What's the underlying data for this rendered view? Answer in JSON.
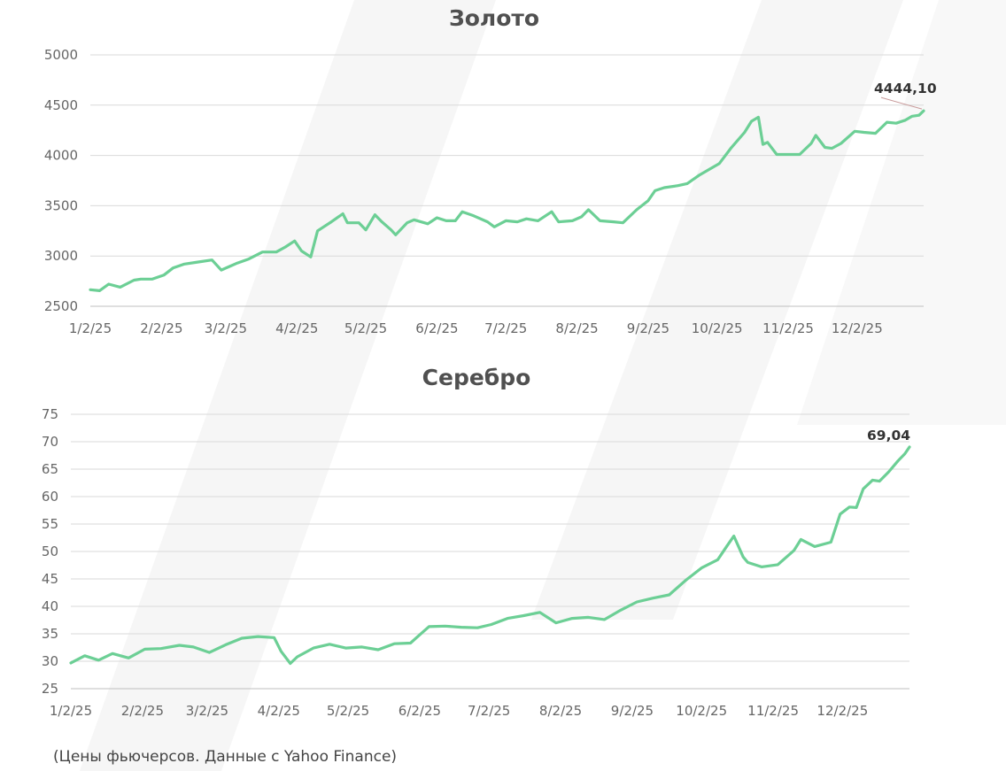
{
  "colors": {
    "line": "#6ccf95",
    "grid": "#d9d9d9",
    "text": "#555555",
    "watermark": "#f6f6f6"
  },
  "footnote": "(Цены фьючерсов. Данные с Yahoo Finance)",
  "chart_data": [
    {
      "type": "line",
      "title": "Золото",
      "xlabel": "",
      "ylabel": "",
      "x_start": "1/2/25",
      "x_end": "12/31/25",
      "x_ticks": [
        "1/2/25",
        "2/2/25",
        "3/2/25",
        "4/2/25",
        "5/2/25",
        "6/2/25",
        "7/2/25",
        "8/2/25",
        "9/2/25",
        "10/2/25",
        "11/2/25",
        "12/2/25"
      ],
      "y_ticks": [
        2500,
        3000,
        3500,
        4000,
        4500,
        5000
      ],
      "ylim": [
        2500,
        5000
      ],
      "grid": true,
      "end_label": "4444,10",
      "series": [
        {
          "x": [
            "1/2/25",
            "1/6/25",
            "1/10/25",
            "1/15/25",
            "1/21/25",
            "1/24/25",
            "1/29/25",
            "2/3/25",
            "2/7/25",
            "2/12/25",
            "2/18/25",
            "2/24/25",
            "2/28/25",
            "3/4/25",
            "3/7/25",
            "3/12/25",
            "3/18/25",
            "3/24/25",
            "3/28/25",
            "4/1/25",
            "4/4/25",
            "4/8/25",
            "4/11/25",
            "4/17/25",
            "4/22/25",
            "4/24/25",
            "4/29/25",
            "5/2/25",
            "5/6/25",
            "5/9/25",
            "5/13/25",
            "5/15/25",
            "5/20/25",
            "5/23/25",
            "5/29/25",
            "6/2/25",
            "6/6/25",
            "6/10/25",
            "6/13/25",
            "6/18/25",
            "6/24/25",
            "6/27/25",
            "7/2/25",
            "7/7/25",
            "7/11/25",
            "7/16/25",
            "7/22/25",
            "7/25/25",
            "7/31/25",
            "8/4/25",
            "8/7/25",
            "8/12/25",
            "8/18/25",
            "8/22/25",
            "8/28/25",
            "9/2/25",
            "9/5/25",
            "9/9/25",
            "9/15/25",
            "9/19/25",
            "9/24/25",
            "9/30/25",
            "10/3/25",
            "10/8/25",
            "10/14/25",
            "10/17/25",
            "10/20/25",
            "10/22/25",
            "10/24/25",
            "10/28/25",
            "11/3/25",
            "11/7/25",
            "11/12/25",
            "11/14/25",
            "11/18/25",
            "11/21/25",
            "11/25/25",
            "12/1/25",
            "12/5/25",
            "12/10/25",
            "12/15/25",
            "12/19/25",
            "12/23/25",
            "12/26/25",
            "12/29/25",
            "12/31/25"
          ],
          "values": [
            2665,
            2655,
            2720,
            2690,
            2760,
            2770,
            2770,
            2810,
            2880,
            2920,
            2940,
            2960,
            2860,
            2900,
            2930,
            2970,
            3040,
            3040,
            3090,
            3150,
            3050,
            2990,
            3250,
            3340,
            3420,
            3330,
            3330,
            3260,
            3410,
            3340,
            3260,
            3210,
            3330,
            3360,
            3320,
            3380,
            3350,
            3350,
            3440,
            3400,
            3340,
            3290,
            3350,
            3340,
            3370,
            3350,
            3440,
            3340,
            3350,
            3390,
            3460,
            3350,
            3340,
            3330,
            3460,
            3550,
            3650,
            3680,
            3700,
            3720,
            3800,
            3880,
            3920,
            4070,
            4230,
            4340,
            4380,
            4110,
            4130,
            4010,
            4010,
            4010,
            4120,
            4200,
            4080,
            4070,
            4120,
            4240,
            4230,
            4220,
            4330,
            4320,
            4350,
            4390,
            4400,
            4444
          ]
        }
      ]
    },
    {
      "type": "line",
      "title": "Серебро",
      "xlabel": "",
      "ylabel": "",
      "x_start": "1/2/25",
      "x_end": "12/31/25",
      "x_ticks": [
        "1/2/25",
        "2/2/25",
        "3/2/25",
        "4/2/25",
        "5/2/25",
        "6/2/25",
        "7/2/25",
        "8/2/25",
        "9/2/25",
        "10/2/25",
        "11/2/25",
        "12/2/25"
      ],
      "y_ticks": [
        25,
        30,
        35,
        40,
        45,
        50,
        55,
        60,
        65,
        70,
        75
      ],
      "ylim": [
        25,
        75
      ],
      "grid": true,
      "end_label": "69,04",
      "series": [
        {
          "x": [
            "1/2/25",
            "1/8/25",
            "1/14/25",
            "1/20/25",
            "1/27/25",
            "2/3/25",
            "2/10/25",
            "2/18/25",
            "2/24/25",
            "3/3/25",
            "3/10/25",
            "3/17/25",
            "3/24/25",
            "3/31/25",
            "4/3/25",
            "4/7/25",
            "4/10/25",
            "4/17/25",
            "4/24/25",
            "5/1/25",
            "5/8/25",
            "5/15/25",
            "5/22/25",
            "5/29/25",
            "6/2/25",
            "6/6/25",
            "6/13/25",
            "6/20/25",
            "6/27/25",
            "7/3/25",
            "7/10/25",
            "7/17/25",
            "7/24/25",
            "7/31/25",
            "8/7/25",
            "8/14/25",
            "8/21/25",
            "8/28/25",
            "9/4/25",
            "9/11/25",
            "9/18/25",
            "9/25/25",
            "10/2/25",
            "10/9/25",
            "10/13/25",
            "10/16/25",
            "10/20/25",
            "10/22/25",
            "10/28/25",
            "11/4/25",
            "11/11/25",
            "11/14/25",
            "11/20/25",
            "11/27/25",
            "12/1/25",
            "12/5/25",
            "12/8/25",
            "12/11/25",
            "12/15/25",
            "12/18/25",
            "12/22/25",
            "12/26/25",
            "12/29/25",
            "12/31/25"
          ],
          "values": [
            29.7,
            31.0,
            30.2,
            31.4,
            30.6,
            32.2,
            32.3,
            32.9,
            32.6,
            31.6,
            33.0,
            34.2,
            34.5,
            34.3,
            31.8,
            29.6,
            30.8,
            32.4,
            33.1,
            32.4,
            32.6,
            32.1,
            33.2,
            33.3,
            34.8,
            36.3,
            36.4,
            36.2,
            36.1,
            36.7,
            37.8,
            38.3,
            38.9,
            37.0,
            37.8,
            38.0,
            37.6,
            39.3,
            40.8,
            41.5,
            42.1,
            44.7,
            47.0,
            48.5,
            51.0,
            52.8,
            49.0,
            48.0,
            47.2,
            47.6,
            50.2,
            52.2,
            50.9,
            51.7,
            56.8,
            58.1,
            58.0,
            61.4,
            63.0,
            62.8,
            64.5,
            66.5,
            67.8,
            69.04
          ]
        }
      ]
    }
  ]
}
